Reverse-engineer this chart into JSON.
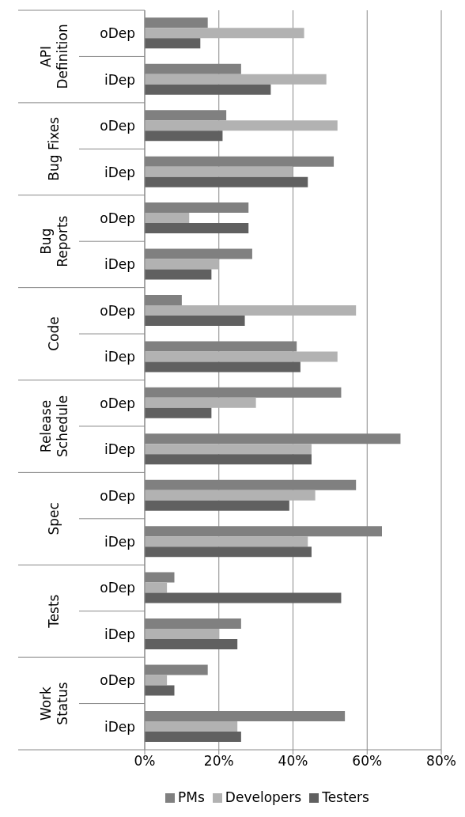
{
  "chart_data": {
    "type": "bar",
    "orientation": "horizontal",
    "categories": [
      "oDep",
      "iDep",
      "oDep",
      "iDep",
      "oDep",
      "iDep",
      "oDep",
      "iDep",
      "oDep",
      "iDep",
      "oDep",
      "iDep",
      "oDep",
      "iDep",
      "oDep",
      "iDep"
    ],
    "annotations": [
      "API\nDefinition",
      "Bug Fixes",
      "Bug\nReports",
      "Code",
      "Release\nSchedule",
      "Spec",
      "Tests",
      "Work\nStatus"
    ],
    "series": [
      {
        "name": "PMs",
        "color": "#808080",
        "values": [
          17,
          26,
          22,
          51,
          28,
          29,
          10,
          41,
          53,
          69,
          57,
          64,
          8,
          26,
          17,
          54
        ]
      },
      {
        "name": "Developers",
        "color": "#b2b2b2",
        "values": [
          43,
          49,
          52,
          40,
          12,
          20,
          57,
          52,
          30,
          45,
          46,
          44,
          6,
          20,
          6,
          25
        ]
      },
      {
        "name": "Testers",
        "color": "#606060",
        "values": [
          15,
          34,
          21,
          44,
          28,
          18,
          27,
          42,
          18,
          45,
          39,
          45,
          53,
          25,
          8,
          26
        ]
      }
    ],
    "xlim": [
      0,
      80
    ],
    "xticks": [
      {
        "value": 0,
        "label": "0%"
      },
      {
        "value": 20,
        "label": "20%"
      },
      {
        "value": 40,
        "label": "40%"
      },
      {
        "value": 60,
        "label": "60%"
      },
      {
        "value": 80,
        "label": "80%"
      }
    ],
    "grid": "x",
    "legend": "bottom"
  }
}
